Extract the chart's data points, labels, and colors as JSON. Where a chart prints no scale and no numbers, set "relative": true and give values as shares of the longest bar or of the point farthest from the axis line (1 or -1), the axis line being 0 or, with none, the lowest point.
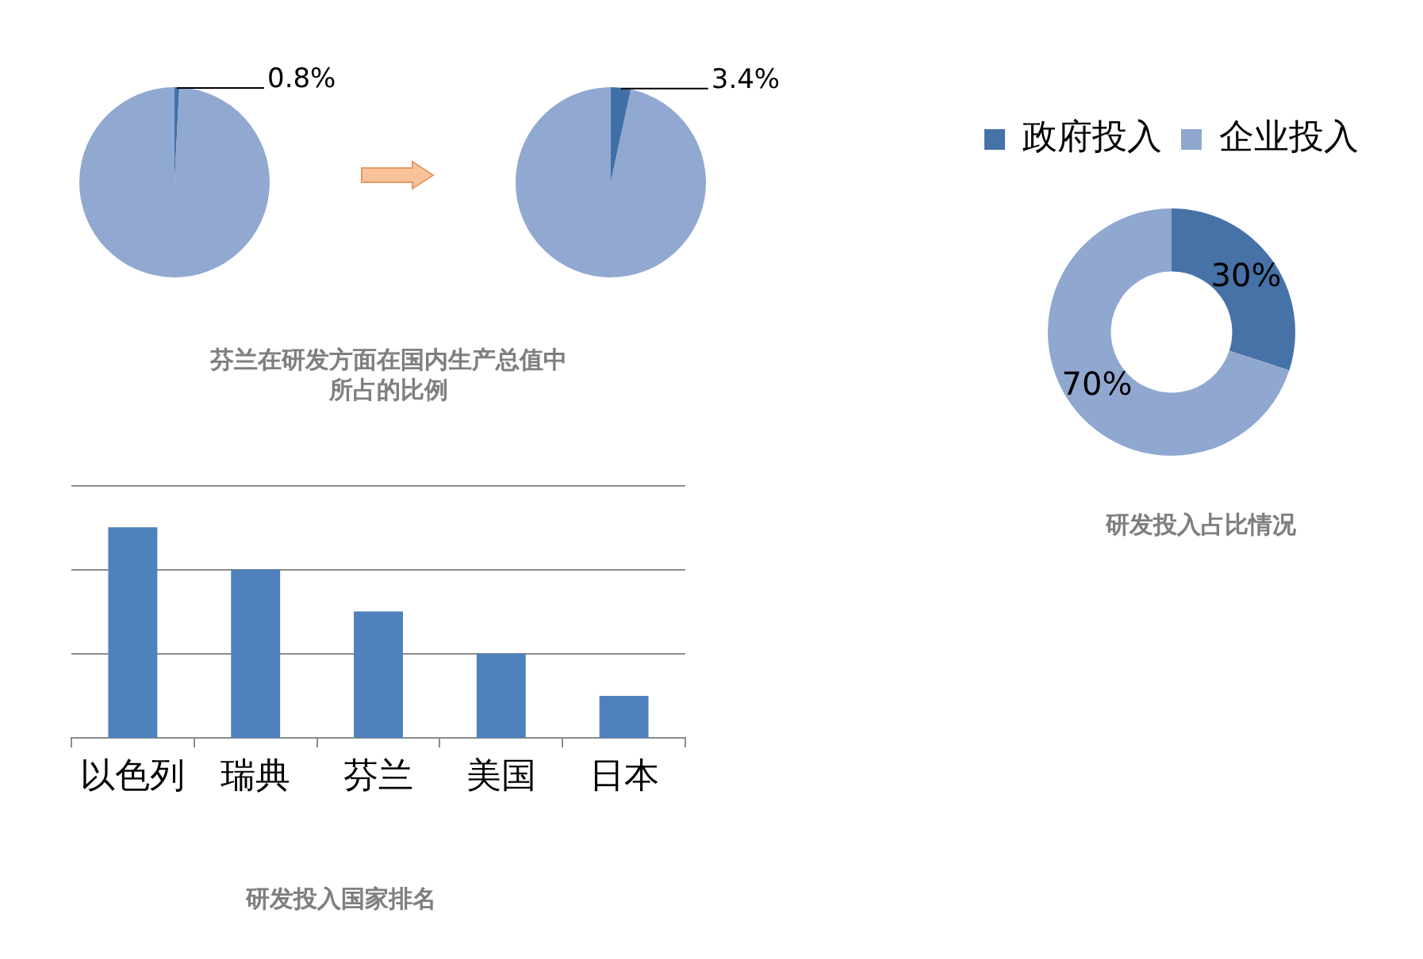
{
  "chart_data": [
    {
      "type": "pie",
      "title": "芬兰在研发方面在国内生产总值中所占的比例",
      "categories": [
        null,
        null
      ],
      "values": [
        0.8,
        99.2
      ],
      "colors": [
        "#4170a8",
        "#91a8d1"
      ],
      "value_labels": [
        "0.8%",
        null
      ]
    },
    {
      "type": "pie",
      "categories": [
        null,
        null
      ],
      "values": [
        3.4,
        96.6
      ],
      "colors": [
        "#4170a8",
        "#91a8d1"
      ],
      "value_labels": [
        "3.4%",
        null
      ]
    },
    {
      "type": "donut",
      "title": "研发投入占比情况",
      "categories": [
        "政府投入",
        "企业投入"
      ],
      "values": [
        30,
        70
      ],
      "colors": [
        "#4672a8",
        "#90a8d0"
      ],
      "value_labels": [
        "30%",
        "70%"
      ],
      "legend": "top"
    },
    {
      "type": "bar",
      "title": "研发投入国家排名",
      "categories": [
        "以色列",
        "瑞典",
        "芬兰",
        "美国",
        "日本"
      ],
      "values": [
        1,
        0.8,
        0.6,
        0.4,
        0.2
      ],
      "color": "#4f81bd",
      "relative": true,
      "ref_lines": [
        {
          "axis": "y",
          "value": 0.4,
          "color": "#8c8c8c"
        },
        {
          "axis": "y",
          "value": 0.8,
          "color": "#8c8c8c"
        },
        {
          "axis": "y",
          "value": 1.2,
          "color": "#8c8c8c"
        }
      ]
    }
  ]
}
